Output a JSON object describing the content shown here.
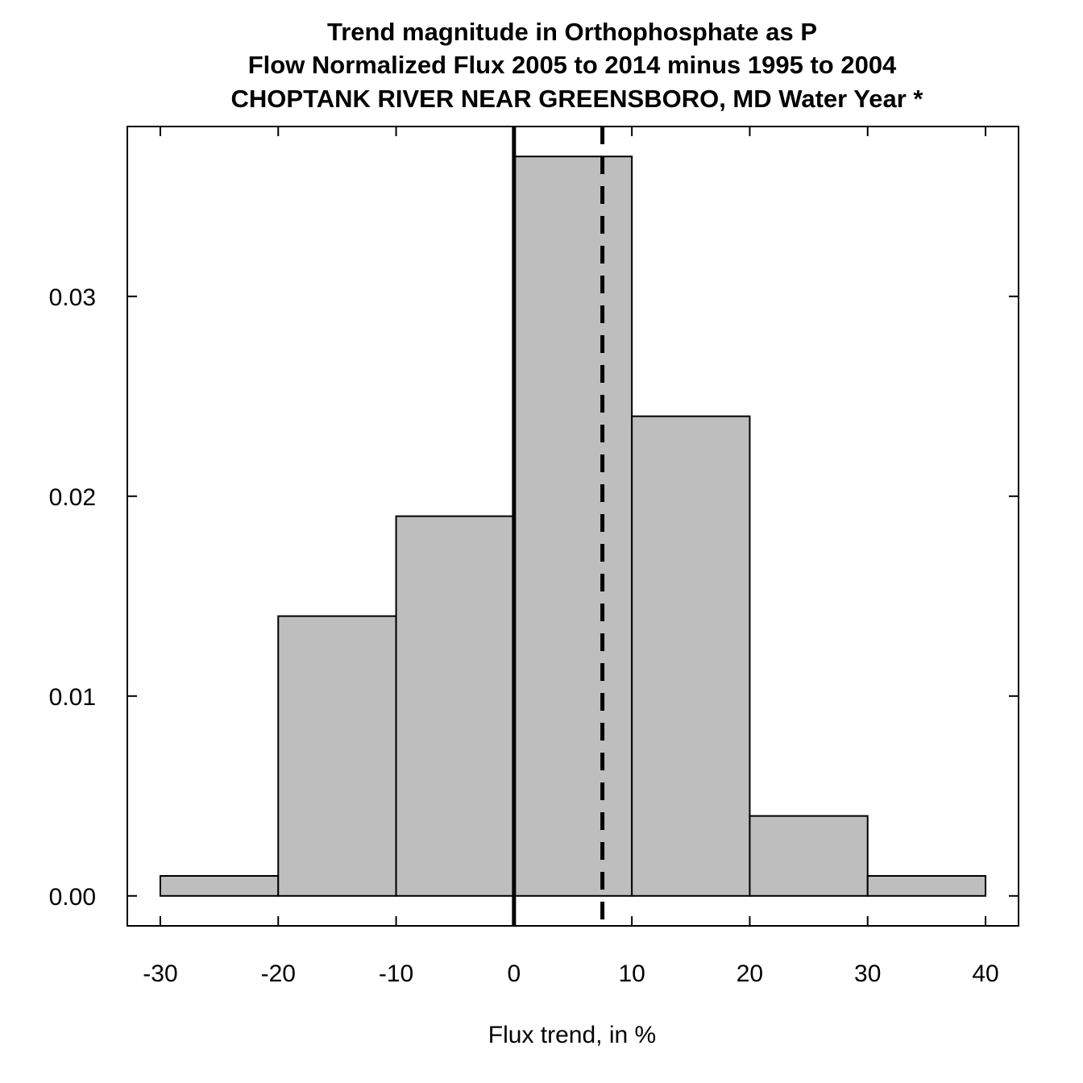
{
  "chart_data": {
    "type": "bar",
    "histogram": true,
    "title_lines": [
      "Trend magnitude in Orthophosphate as P",
      "Flow Normalized Flux 2005 to 2014 minus 1995 to 2004",
      "CHOPTANK RIVER NEAR GREENSBORO, MD Water Year *"
    ],
    "xlabel": "Flux trend, in %",
    "ylabel": "",
    "bin_edges": [
      -30,
      -20,
      -10,
      0,
      10,
      20,
      30,
      40
    ],
    "values": [
      0.001,
      0.014,
      0.019,
      0.037,
      0.024,
      0.004,
      0.001
    ],
    "xlim": [
      -32.8,
      42.8
    ],
    "ylim": [
      -0.0015,
      0.0385
    ],
    "x_ticks": [
      -30,
      -20,
      -10,
      0,
      10,
      20,
      30,
      40
    ],
    "x_tick_labels": [
      "-30",
      "-20",
      "-10",
      "0",
      "10",
      "20",
      "30",
      "40"
    ],
    "y_ticks": [
      0.0,
      0.01,
      0.02,
      0.03
    ],
    "y_tick_labels": [
      "0.00",
      "0.01",
      "0.02",
      "0.03"
    ],
    "reference_lines": [
      {
        "x": 0,
        "style": "solid"
      },
      {
        "x": 7.5,
        "style": "dashed"
      }
    ],
    "bar_color": "#bebebe",
    "grid": false
  }
}
